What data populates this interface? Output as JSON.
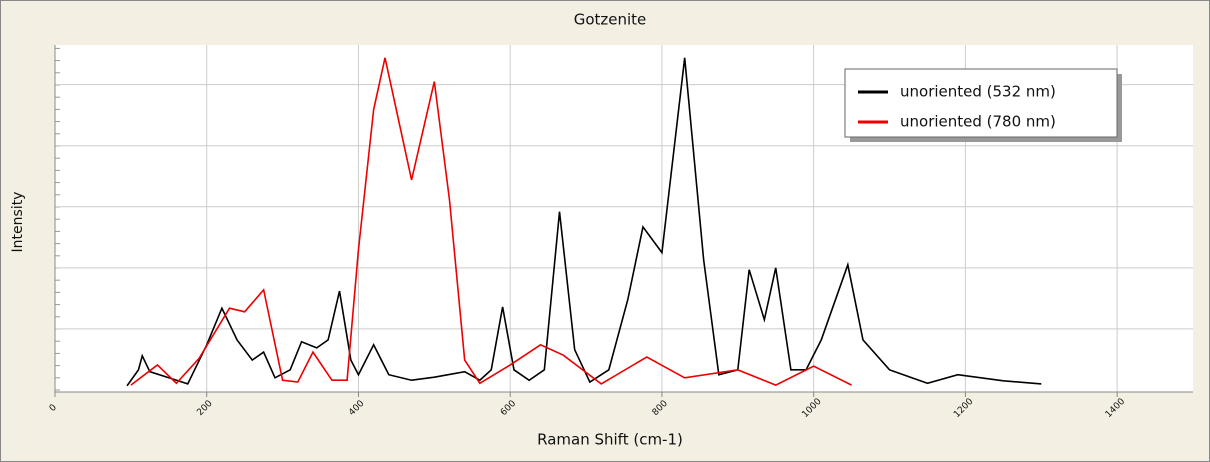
{
  "chart_data": {
    "type": "line",
    "title": "Gotzenite",
    "x_label": "Raman Shift (cm-1)",
    "y_label": "Intensity",
    "xlim": [
      0,
      1500
    ],
    "xticks": [
      0,
      200,
      400,
      600,
      800,
      1000,
      1200,
      1400
    ],
    "ylim": [
      0,
      5.6
    ],
    "yticks": [
      1,
      2,
      3,
      4,
      5
    ],
    "grid": true,
    "legend": "upper right",
    "series": [
      {
        "name": "unoriented (532 nm)",
        "color": "#000000",
        "x": [
          95,
          110,
          115,
          125,
          150,
          175,
          200,
          220,
          240,
          260,
          275,
          290,
          310,
          325,
          345,
          360,
          375,
          390,
          400,
          420,
          440,
          470,
          500,
          540,
          560,
          575,
          590,
          605,
          625,
          645,
          665,
          685,
          705,
          730,
          755,
          775,
          800,
          830,
          855,
          875,
          900,
          915,
          935,
          950,
          970,
          990,
          1010,
          1045,
          1065,
          1100,
          1150,
          1190,
          1250,
          1300
        ],
        "values": [
          0.07,
          0.33,
          0.56,
          0.3,
          0.2,
          0.1,
          0.74,
          1.34,
          0.82,
          0.49,
          0.62,
          0.2,
          0.33,
          0.79,
          0.69,
          0.82,
          1.62,
          0.49,
          0.25,
          0.74,
          0.25,
          0.16,
          0.21,
          0.3,
          0.16,
          0.33,
          1.36,
          0.33,
          0.16,
          0.33,
          2.92,
          0.66,
          0.13,
          0.33,
          1.48,
          2.67,
          2.25,
          5.44,
          2.13,
          0.25,
          0.33,
          1.97,
          1.15,
          2.0,
          0.33,
          0.33,
          0.82,
          2.05,
          0.82,
          0.33,
          0.11,
          0.25,
          0.15,
          0.1
        ]
      },
      {
        "name": "unoriented (780 nm)",
        "color": "#ee0000",
        "x": [
          100,
          135,
          160,
          190,
          230,
          250,
          275,
          300,
          320,
          340,
          365,
          385,
          400,
          420,
          435,
          470,
          500,
          520,
          540,
          560,
          600,
          640,
          670,
          720,
          780,
          830,
          900,
          950,
          1000,
          1050
        ],
        "values": [
          0.08,
          0.41,
          0.11,
          0.52,
          1.34,
          1.28,
          1.64,
          0.16,
          0.13,
          0.62,
          0.16,
          0.16,
          2.3,
          4.59,
          5.44,
          3.44,
          5.05,
          3.11,
          0.49,
          0.11,
          0.41,
          0.74,
          0.57,
          0.1,
          0.54,
          0.2,
          0.33,
          0.08,
          0.39,
          0.08
        ]
      }
    ]
  }
}
